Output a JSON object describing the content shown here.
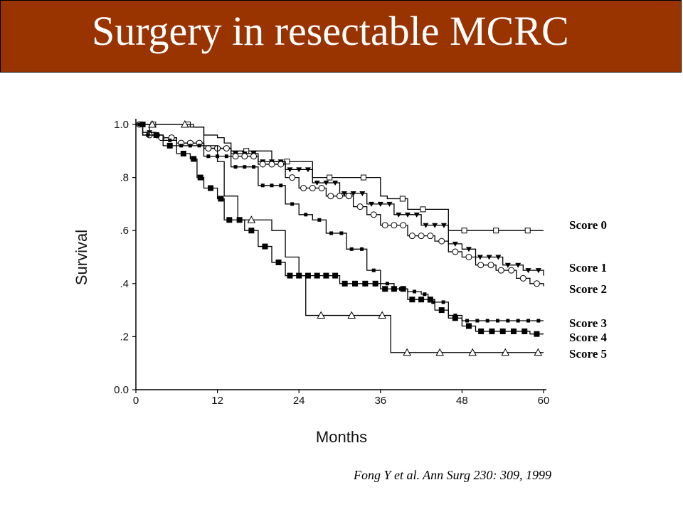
{
  "slide": {
    "title": "Surgery in resectable MCRC",
    "citation": "Fong Y et al. Ann Surg 230: 309, 1999"
  },
  "colors": {
    "title_bar": "#993300",
    "title_text": "#ffffff",
    "ink": "#000000"
  },
  "chart_data": {
    "type": "line",
    "subtype": "kaplan-meier-step",
    "xlabel": "Months",
    "ylabel": "Survival",
    "xlim": [
      0,
      60
    ],
    "ylim": [
      0,
      1.0
    ],
    "x_ticks": [
      0,
      12,
      24,
      36,
      48,
      60
    ],
    "x_tick_labels": [
      "0",
      "12",
      "24",
      "36",
      "48",
      "60"
    ],
    "y_ticks": [
      0,
      0.2,
      0.4,
      0.6,
      0.8,
      1.0
    ],
    "y_tick_labels": [
      "0.0",
      ".2",
      ".4",
      ".6",
      ".8",
      "1.0"
    ],
    "grid": false,
    "legend": "direct labels at right end of curves",
    "series": [
      {
        "name": "Score 0",
        "marker": "open-square",
        "points": [
          [
            0,
            1.0
          ],
          [
            8.5,
            0.99
          ],
          [
            10,
            0.96
          ],
          [
            12,
            0.95
          ],
          [
            13,
            0.93
          ],
          [
            14,
            0.9
          ],
          [
            20,
            0.86
          ],
          [
            26,
            0.8
          ],
          [
            36,
            0.73
          ],
          [
            37,
            0.72
          ],
          [
            40,
            0.68
          ],
          [
            46,
            0.6
          ],
          [
            60,
            0.6
          ]
        ]
      },
      {
        "name": "Score 1",
        "marker": "filled-triangle",
        "points": [
          [
            0,
            1.0
          ],
          [
            1,
            0.97
          ],
          [
            3,
            0.95
          ],
          [
            6,
            0.93
          ],
          [
            10,
            0.91
          ],
          [
            14,
            0.89
          ],
          [
            18,
            0.86
          ],
          [
            22,
            0.83
          ],
          [
            26,
            0.78
          ],
          [
            30,
            0.74
          ],
          [
            34,
            0.7
          ],
          [
            38,
            0.66
          ],
          [
            42,
            0.62
          ],
          [
            46,
            0.55
          ],
          [
            48,
            0.53
          ],
          [
            50,
            0.5
          ],
          [
            54,
            0.47
          ],
          [
            57,
            0.45
          ],
          [
            60,
            0.43
          ]
        ]
      },
      {
        "name": "Score 2",
        "marker": "open-circle",
        "points": [
          [
            0,
            1.0
          ],
          [
            1,
            0.96
          ],
          [
            3,
            0.95
          ],
          [
            6,
            0.93
          ],
          [
            10,
            0.91
          ],
          [
            14,
            0.88
          ],
          [
            18,
            0.85
          ],
          [
            22,
            0.8
          ],
          [
            24,
            0.76
          ],
          [
            28,
            0.73
          ],
          [
            32,
            0.69
          ],
          [
            34,
            0.66
          ],
          [
            36,
            0.62
          ],
          [
            40,
            0.58
          ],
          [
            44,
            0.56
          ],
          [
            46,
            0.52
          ],
          [
            48,
            0.5
          ],
          [
            50,
            0.47
          ],
          [
            53,
            0.45
          ],
          [
            56,
            0.42
          ],
          [
            58,
            0.4
          ],
          [
            60,
            0.39
          ]
        ]
      },
      {
        "name": "Score 3",
        "marker": "small-filled-square",
        "points": [
          [
            0,
            1.0
          ],
          [
            1,
            0.96
          ],
          [
            4,
            0.94
          ],
          [
            6,
            0.92
          ],
          [
            10,
            0.88
          ],
          [
            14,
            0.84
          ],
          [
            18,
            0.77
          ],
          [
            22,
            0.7
          ],
          [
            24,
            0.66
          ],
          [
            26,
            0.64
          ],
          [
            28,
            0.59
          ],
          [
            31,
            0.53
          ],
          [
            34,
            0.45
          ],
          [
            36,
            0.4
          ],
          [
            38,
            0.38
          ],
          [
            40,
            0.37
          ],
          [
            42,
            0.36
          ],
          [
            43,
            0.33
          ],
          [
            46,
            0.28
          ],
          [
            48,
            0.26
          ],
          [
            60,
            0.26
          ]
        ]
      },
      {
        "name": "Score 4",
        "marker": "large-filled-square",
        "points": [
          [
            0,
            1.0
          ],
          [
            2,
            0.96
          ],
          [
            4,
            0.92
          ],
          [
            6,
            0.89
          ],
          [
            8,
            0.87
          ],
          [
            9,
            0.8
          ],
          [
            10,
            0.76
          ],
          [
            12,
            0.72
          ],
          [
            13,
            0.64
          ],
          [
            16,
            0.6
          ],
          [
            18,
            0.54
          ],
          [
            20,
            0.48
          ],
          [
            22,
            0.43
          ],
          [
            26,
            0.43
          ],
          [
            30,
            0.4
          ],
          [
            36,
            0.38
          ],
          [
            40,
            0.34
          ],
          [
            44,
            0.3
          ],
          [
            46,
            0.27
          ],
          [
            48,
            0.24
          ],
          [
            50,
            0.22
          ],
          [
            58,
            0.21
          ],
          [
            60,
            0.21
          ]
        ]
      },
      {
        "name": "Score 5",
        "marker": "open-triangle",
        "points": [
          [
            0,
            1.0
          ],
          [
            8,
            0.99
          ],
          [
            10,
            0.92
          ],
          [
            12,
            0.86
          ],
          [
            13,
            0.73
          ],
          [
            15,
            0.64
          ],
          [
            19,
            0.64
          ],
          [
            20,
            0.6
          ],
          [
            22,
            0.5
          ],
          [
            24,
            0.43
          ],
          [
            25,
            0.28
          ],
          [
            37,
            0.28
          ],
          [
            37.5,
            0.14
          ],
          [
            60,
            0.14
          ]
        ]
      }
    ]
  }
}
